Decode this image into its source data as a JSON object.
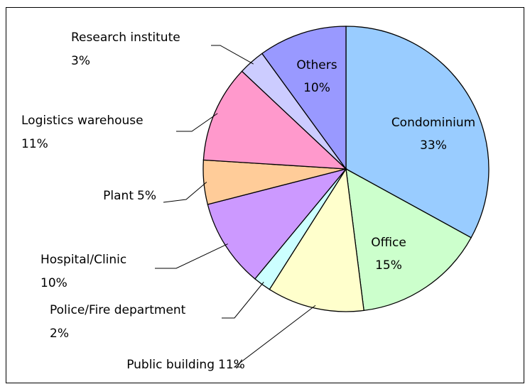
{
  "chart_data": {
    "type": "pie",
    "categories": [
      "Condominium",
      "Office",
      "Public building",
      "Police/Fire department",
      "Hospital/Clinic",
      "Plant",
      "Logistics warehouse",
      "Research institute",
      "Others"
    ],
    "values": [
      33,
      15,
      11,
      2,
      10,
      5,
      11,
      3,
      10
    ],
    "value_labels": [
      "33%",
      "15%",
      "11%",
      "2%",
      "10%",
      "5%",
      "11%",
      "3%",
      "10%"
    ],
    "colors": [
      "#99ccff",
      "#ccffcc",
      "#ffffcc",
      "#ccffff",
      "#cc99ff",
      "#ffcc99",
      "#ff99cc",
      "#ccccff",
      "#9999ff"
    ]
  }
}
